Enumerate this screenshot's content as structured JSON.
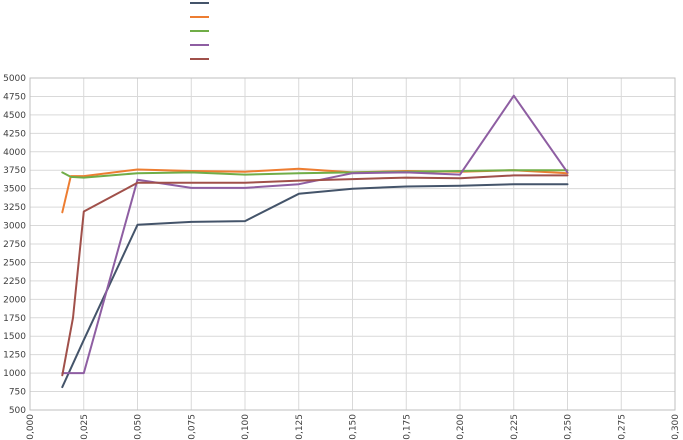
{
  "chart_data": {
    "type": "line",
    "title": "",
    "xlabel": "",
    "ylabel": "",
    "xlim": [
      0,
      0.3
    ],
    "ylim": [
      500,
      5000
    ],
    "x_ticks": [
      0.0,
      0.025,
      0.05,
      0.075,
      0.1,
      0.125,
      0.15,
      0.175,
      0.2,
      0.225,
      0.25,
      0.275,
      0.3
    ],
    "x_tick_labels": [
      "0,000",
      "0,025",
      "0,050",
      "0,075",
      "0,100",
      "0,125",
      "0,150",
      "0,175",
      "0,200",
      "0,225",
      "0,250",
      "0,275",
      "0,300"
    ],
    "y_ticks": [
      500,
      750,
      1000,
      1250,
      1500,
      1750,
      2000,
      2250,
      2500,
      2750,
      3000,
      3250,
      3500,
      3750,
      4000,
      4250,
      4500,
      4750,
      5000
    ],
    "y_tick_labels": [
      "500",
      "750",
      "1000",
      "1250",
      "1500",
      "1750",
      "2000",
      "2250",
      "2500",
      "2750",
      "3000",
      "3250",
      "3500",
      "3750",
      "4000",
      "4250",
      "4500",
      "4750",
      "5000"
    ],
    "grid": true,
    "legend_position": "top-center",
    "series": [
      {
        "color": "#44546a",
        "points": [
          [
            0.015,
            810
          ],
          [
            0.025,
            1450
          ],
          [
            0.05,
            3010
          ],
          [
            0.075,
            3050
          ],
          [
            0.1,
            3060
          ],
          [
            0.125,
            3430
          ],
          [
            0.15,
            3500
          ],
          [
            0.175,
            3530
          ],
          [
            0.2,
            3540
          ],
          [
            0.225,
            3560
          ],
          [
            0.25,
            3560
          ]
        ]
      },
      {
        "color": "#ed7d31",
        "points": [
          [
            0.015,
            3180
          ],
          [
            0.019,
            3670
          ],
          [
            0.025,
            3670
          ],
          [
            0.05,
            3760
          ],
          [
            0.075,
            3740
          ],
          [
            0.1,
            3730
          ],
          [
            0.125,
            3770
          ],
          [
            0.15,
            3720
          ],
          [
            0.175,
            3740
          ],
          [
            0.2,
            3730
          ],
          [
            0.225,
            3750
          ],
          [
            0.25,
            3710
          ]
        ]
      },
      {
        "color": "#70ad47",
        "points": [
          [
            0.015,
            3720
          ],
          [
            0.019,
            3660
          ],
          [
            0.025,
            3650
          ],
          [
            0.05,
            3710
          ],
          [
            0.075,
            3720
          ],
          [
            0.1,
            3690
          ],
          [
            0.125,
            3710
          ],
          [
            0.15,
            3720
          ],
          [
            0.175,
            3730
          ],
          [
            0.2,
            3740
          ],
          [
            0.225,
            3750
          ],
          [
            0.25,
            3750
          ]
        ]
      },
      {
        "color": "#8e5ea2",
        "points": [
          [
            0.015,
            1000
          ],
          [
            0.02,
            1000
          ],
          [
            0.025,
            1000
          ],
          [
            0.05,
            3620
          ],
          [
            0.075,
            3510
          ],
          [
            0.1,
            3510
          ],
          [
            0.125,
            3560
          ],
          [
            0.15,
            3710
          ],
          [
            0.175,
            3720
          ],
          [
            0.2,
            3690
          ],
          [
            0.225,
            4760
          ],
          [
            0.25,
            3720
          ]
        ]
      },
      {
        "color": "#a0504a",
        "points": [
          [
            0.015,
            970
          ],
          [
            0.02,
            1750
          ],
          [
            0.025,
            3190
          ],
          [
            0.05,
            3580
          ],
          [
            0.075,
            3580
          ],
          [
            0.1,
            3580
          ],
          [
            0.125,
            3610
          ],
          [
            0.15,
            3630
          ],
          [
            0.175,
            3650
          ],
          [
            0.2,
            3640
          ],
          [
            0.225,
            3680
          ],
          [
            0.25,
            3680
          ]
        ]
      }
    ]
  }
}
